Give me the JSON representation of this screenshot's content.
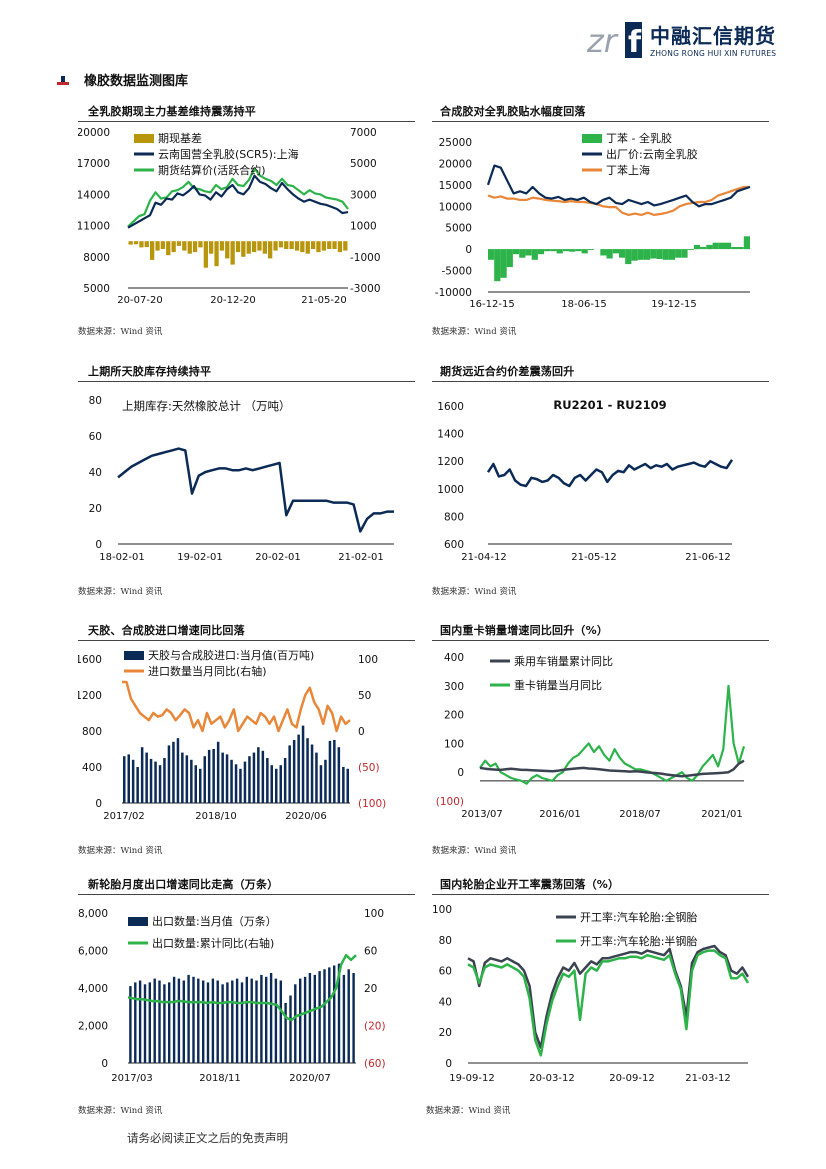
{
  "header": {
    "logo_mark": "zrf",
    "company_cn": "中融汇信期货",
    "company_en": "ZHONG RONG HUI XIN FUTURES",
    "section_title": "橡胶数据监测图库",
    "accent_color": "#0b2a55",
    "brand_green": "#2db34a"
  },
  "source_label": "数据来源：Wind 资讯",
  "disclaimer": "请务必阅读正文之后的免责声明",
  "chart_data": [
    {
      "id": "c1",
      "type": "bar+line",
      "title": "全乳胶期现主力基差维持震荡持平",
      "left_axis": {
        "ticks": [
          "20000",
          "17000",
          "14000",
          "11000",
          "8000",
          "5000"
        ],
        "range": [
          5000,
          20000
        ]
      },
      "right_axis": {
        "ticks": [
          "7000",
          "5000",
          "3000",
          "1000",
          "-1000",
          "-3000"
        ],
        "range": [
          -3000,
          7000
        ]
      },
      "x_ticks": [
        "20-07-20",
        "20-12-20",
        "21-05-20"
      ],
      "series": [
        {
          "name": "期现基差",
          "kind": "bar",
          "axis": "right",
          "color": "#b8960c"
        },
        {
          "name": "云南国营全乳胶(SCR5):上海",
          "kind": "line",
          "axis": "left",
          "color": "#0b2a55"
        },
        {
          "name": "期货结算价(活跃合约)",
          "kind": "line",
          "axis": "left",
          "color": "#2db34a"
        }
      ],
      "approx_values": {
        "spot": [
          10800,
          11100,
          11400,
          11700,
          12000,
          13200,
          13000,
          13600,
          13500,
          14100,
          13900,
          14300,
          14800,
          14000,
          13900,
          13500,
          14200,
          13800,
          14500,
          14900,
          14200,
          14000,
          14600,
          15800,
          15200,
          15000,
          14600,
          14300,
          15100,
          14500,
          14000,
          13600,
          13300,
          13500,
          13300,
          13100,
          13000,
          12800,
          12600,
          12200,
          12300
        ],
        "futures": [
          10900,
          11400,
          11900,
          12100,
          13400,
          14200,
          13600,
          13700,
          14300,
          14400,
          14700,
          15200,
          14600,
          14500,
          14300,
          14200,
          14900,
          14500,
          14700,
          15500,
          14900,
          14800,
          15400,
          16500,
          15800,
          15500,
          15300,
          14900,
          15500,
          14900,
          14800,
          14400,
          14000,
          14400,
          14100,
          14000,
          13700,
          13600,
          13500,
          13300,
          12600
        ],
        "basis": [
          -220,
          -200,
          -400,
          -380,
          -1200,
          -600,
          -500,
          -900,
          -700,
          -300,
          -600,
          -800,
          -700,
          -400,
          -1700,
          -800,
          -1600,
          -600,
          -1100,
          -1500,
          -700,
          -1000,
          -800,
          -700,
          -600,
          -800,
          -1100,
          -600,
          -400,
          -500,
          -500,
          -600,
          -700,
          -800,
          -500,
          -700,
          -600,
          -500,
          -500,
          -700,
          -600
        ]
      }
    },
    {
      "id": "c2",
      "type": "bar+line",
      "title": "合成胶对全乳胶贴水幅度回落",
      "left_axis": {
        "ticks": [
          "25000",
          "20000",
          "15000",
          "10000",
          "5000",
          "0",
          "-5000",
          "-10000"
        ],
        "range": [
          -10000,
          25000
        ]
      },
      "x_ticks": [
        "16-12-15",
        "18-06-15",
        "19-12-15"
      ],
      "series": [
        {
          "name": "丁苯 - 全乳胶",
          "kind": "bar",
          "color": "#2db34a"
        },
        {
          "name": "出厂价:云南全乳胶",
          "kind": "line",
          "color": "#0b2a55"
        },
        {
          "name": "丁苯上海",
          "kind": "line",
          "color": "#e8873a"
        }
      ],
      "approx_values": {
        "natural": [
          15000,
          19500,
          19000,
          16000,
          13000,
          13500,
          13000,
          14500,
          13000,
          12000,
          11800,
          12200,
          11500,
          11800,
          11500,
          12000,
          11000,
          10500,
          11500,
          12000,
          10800,
          10500,
          11500,
          11000,
          10500,
          11000,
          10200,
          10500,
          11000,
          11500,
          12000,
          12500,
          11000,
          10000,
          10500,
          10500,
          11000,
          11500,
          12000,
          13500,
          14000,
          14500
        ],
        "sbr": [
          12500,
          12000,
          12300,
          11800,
          11800,
          11500,
          11500,
          12000,
          11800,
          11500,
          11300,
          11200,
          11000,
          11200,
          11000,
          11000,
          10800,
          10500,
          10000,
          9800,
          9800,
          8500,
          8000,
          8300,
          8000,
          8500,
          8000,
          8200,
          8500,
          9000,
          10000,
          10500,
          10800,
          11000,
          11000,
          11500,
          12500,
          13000,
          13500,
          14000,
          14500,
          14500
        ],
        "spread": [
          -2500,
          -7500,
          -6700,
          -4200,
          -1200,
          -2000,
          -1500,
          -2500,
          -1200,
          -500,
          -500,
          -1000,
          -500,
          -600,
          -500,
          -1000,
          -200,
          0,
          -1500,
          -2200,
          -1000,
          -2000,
          -3500,
          -2700,
          -2500,
          -2500,
          -2200,
          -2300,
          -2500,
          -2500,
          -2000,
          -2000,
          -200,
          1000,
          500,
          1000,
          1500,
          1500,
          1500,
          500,
          500,
          3000
        ]
      }
    },
    {
      "id": "c3",
      "type": "line",
      "title": "上期所天胶库存持续持平",
      "annotation": "上期库存:天然橡胶总计  （万吨）",
      "left_axis": {
        "ticks": [
          "80",
          "60",
          "40",
          "20",
          "0"
        ],
        "range": [
          0,
          80
        ]
      },
      "x_ticks": [
        "18-02-01",
        "19-02-01",
        "20-02-01",
        "21-02-01"
      ],
      "series": [
        {
          "name": "上期库存:天然橡胶总计",
          "color": "#0b2a55"
        }
      ],
      "approx_values": [
        37,
        40,
        43,
        45,
        47,
        49,
        50,
        51,
        52,
        53,
        52,
        28,
        38,
        40,
        41,
        42,
        42,
        41,
        41,
        42,
        41,
        42,
        43,
        44,
        45,
        16,
        24,
        24,
        24,
        24,
        24,
        24,
        23,
        23,
        23,
        22,
        7,
        14,
        17,
        17,
        18,
        18
      ]
    },
    {
      "id": "c4",
      "type": "line",
      "title": "期货远近合约价差震荡回升",
      "annotation": "RU2201 - RU2109",
      "left_axis": {
        "ticks": [
          "1600",
          "1400",
          "1200",
          "1000",
          "800",
          "600"
        ],
        "range": [
          600,
          1600
        ]
      },
      "x_ticks": [
        "21-04-12",
        "21-05-12",
        "21-06-12"
      ],
      "series": [
        {
          "name": "RU2201 - RU2109",
          "color": "#0b2a55"
        }
      ],
      "approx_values": [
        1120,
        1180,
        1090,
        1100,
        1140,
        1060,
        1030,
        1020,
        1080,
        1070,
        1050,
        1060,
        1100,
        1080,
        1040,
        1020,
        1080,
        1100,
        1060,
        1100,
        1140,
        1120,
        1050,
        1100,
        1130,
        1120,
        1170,
        1140,
        1160,
        1180,
        1150,
        1170,
        1160,
        1180,
        1140,
        1160,
        1170,
        1180,
        1190,
        1170,
        1160,
        1200,
        1180,
        1160,
        1150,
        1210
      ]
    },
    {
      "id": "c5",
      "type": "bar+line",
      "title": "天胶、合成胶进口增速同比回落",
      "left_axis": {
        "ticks": [
          "1600",
          "1200",
          "800",
          "400",
          "0"
        ],
        "range": [
          0,
          1600
        ]
      },
      "right_axis": {
        "ticks": [
          "100",
          "50",
          "0",
          "(50)",
          "(100)"
        ],
        "range": [
          -100,
          100
        ]
      },
      "x_ticks": [
        "2017/02",
        "2018/10",
        "2020/06"
      ],
      "series": [
        {
          "name": "天胶与合成胶进口:当月值(百万吨)",
          "kind": "bar",
          "color": "#0b2a55"
        },
        {
          "name": "进口数量当月同比(右轴)",
          "kind": "line",
          "axis": "right",
          "color": "#e8873a"
        }
      ],
      "approx_values": {
        "bars": [
          520,
          540,
          480,
          400,
          620,
          560,
          490,
          460,
          420,
          500,
          640,
          680,
          720,
          560,
          530,
          480,
          420,
          380,
          520,
          590,
          600,
          680,
          560,
          540,
          480,
          430,
          380,
          460,
          520,
          560,
          620,
          580,
          500,
          420,
          380,
          420,
          500,
          640,
          700,
          760,
          860,
          720,
          650,
          560,
          420,
          480,
          690,
          700,
          620,
          400,
          380
        ],
        "yoy": [
          68,
          68,
          45,
          35,
          25,
          20,
          15,
          25,
          20,
          22,
          30,
          25,
          15,
          22,
          30,
          25,
          5,
          15,
          0,
          25,
          10,
          15,
          20,
          5,
          15,
          30,
          0,
          10,
          20,
          15,
          10,
          25,
          20,
          10,
          20,
          0,
          15,
          30,
          10,
          5,
          30,
          50,
          60,
          40,
          30,
          10,
          35,
          25,
          0,
          20,
          10,
          15
        ]
      }
    },
    {
      "id": "c6",
      "type": "line",
      "title": "国内重卡销量增速同比回升（%）",
      "left_axis": {
        "ticks": [
          "400",
          "300",
          "200",
          "100",
          "0",
          "(100)"
        ],
        "range": [
          -100,
          400
        ]
      },
      "x_ticks": [
        "2013/07",
        "2016/01",
        "2018/07",
        "2021/01"
      ],
      "series": [
        {
          "name": "乘用车销量累计同比",
          "color": "#3c4350"
        },
        {
          "name": "重卡销量当月同比",
          "color": "#2db34a"
        }
      ],
      "approx_values": {
        "cars": [
          15,
          12,
          10,
          9,
          8,
          10,
          12,
          10,
          8,
          8,
          7,
          6,
          5,
          4,
          3,
          5,
          8,
          10,
          12,
          14,
          15,
          13,
          12,
          10,
          8,
          6,
          5,
          4,
          3,
          2,
          3,
          2,
          0,
          -2,
          -3,
          -5,
          -8,
          -10,
          -12,
          -14,
          -12,
          -10,
          -8,
          -6,
          -5,
          -4,
          -3,
          -2,
          0,
          10,
          30,
          40
        ],
        "trucks": [
          15,
          40,
          20,
          30,
          0,
          -10,
          -20,
          -25,
          -30,
          -40,
          -20,
          -10,
          -20,
          -25,
          -30,
          -10,
          0,
          30,
          50,
          60,
          80,
          100,
          70,
          90,
          60,
          40,
          80,
          50,
          30,
          20,
          10,
          10,
          5,
          0,
          -10,
          -20,
          -30,
          -20,
          -10,
          0,
          -20,
          -30,
          -10,
          20,
          40,
          60,
          20,
          80,
          300,
          100,
          30,
          90
        ]
      }
    },
    {
      "id": "c7",
      "type": "bar+line",
      "title": "新轮胎月度出口增速同比走高（万条）",
      "left_axis": {
        "ticks": [
          "8,000",
          "6,000",
          "4,000",
          "2,000",
          "0"
        ],
        "range": [
          0,
          8000
        ]
      },
      "right_axis": {
        "ticks": [
          "100",
          "60",
          "20",
          "(20)",
          "(60)"
        ],
        "range": [
          -60,
          100
        ]
      },
      "x_ticks": [
        "2017/03",
        "2018/11",
        "2020/07"
      ],
      "series": [
        {
          "name": "出口数量:当月值（万条）",
          "kind": "bar",
          "color": "#0b2a55"
        },
        {
          "name": "出口数量:累计同比(右轴)",
          "kind": "line",
          "axis": "right",
          "color": "#2db34a"
        }
      ],
      "approx_values": {
        "bars": [
          4100,
          4300,
          4400,
          4200,
          4300,
          4500,
          4400,
          4200,
          4300,
          4600,
          4500,
          4400,
          4700,
          4600,
          4500,
          4400,
          4300,
          4500,
          4400,
          4200,
          4300,
          4400,
          4500,
          4300,
          4600,
          4500,
          4400,
          4700,
          4600,
          4800,
          4500,
          4400,
          3200,
          3600,
          4200,
          4500,
          4600,
          4800,
          4700,
          4900,
          5000,
          5100,
          5200,
          5300,
          4700,
          5000,
          4800
        ],
        "yoy": [
          10,
          9,
          8,
          8,
          7,
          6,
          6,
          5,
          5,
          5,
          6,
          6,
          5,
          5,
          5,
          5,
          4,
          5,
          4,
          4,
          5,
          5,
          4,
          4,
          5,
          5,
          4,
          4,
          4,
          3,
          2,
          -5,
          -12,
          -14,
          -10,
          -8,
          -6,
          -4,
          -2,
          0,
          5,
          10,
          20,
          45,
          55,
          50,
          55
        ]
      }
    },
    {
      "id": "c8",
      "type": "line",
      "title": "国内轮胎企业开工率震荡回落（%）",
      "left_axis": {
        "ticks": [
          "100",
          "80",
          "60",
          "40",
          "20",
          "0"
        ],
        "range": [
          0,
          100
        ]
      },
      "x_ticks": [
        "19-09-12",
        "20-03-12",
        "20-09-12",
        "21-03-12"
      ],
      "series": [
        {
          "name": "开工率:汽车轮胎:全钢胎",
          "color": "#3c4350"
        },
        {
          "name": "开工率:汽车轮胎:半钢胎",
          "color": "#2db34a"
        }
      ],
      "approx_values": {
        "steel": [
          68,
          66,
          50,
          65,
          68,
          67,
          66,
          68,
          66,
          64,
          60,
          50,
          20,
          10,
          30,
          45,
          55,
          62,
          60,
          65,
          58,
          62,
          66,
          64,
          68,
          68,
          69,
          70,
          71,
          72,
          72,
          71,
          73,
          72,
          71,
          70,
          74,
          60,
          50,
          30,
          65,
          72,
          74,
          75,
          76,
          72,
          70,
          60,
          58,
          62,
          56
        ],
        "semi": [
          64,
          62,
          52,
          62,
          64,
          63,
          62,
          64,
          62,
          60,
          56,
          42,
          15,
          5,
          25,
          40,
          50,
          58,
          56,
          60,
          28,
          58,
          62,
          60,
          66,
          66,
          67,
          68,
          68,
          69,
          69,
          68,
          70,
          69,
          68,
          67,
          70,
          58,
          48,
          22,
          60,
          70,
          72,
          73,
          73,
          70,
          68,
          55,
          55,
          58,
          52
        ]
      }
    }
  ]
}
